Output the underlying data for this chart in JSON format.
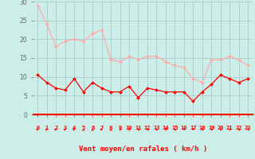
{
  "hours": [
    0,
    1,
    2,
    3,
    4,
    5,
    6,
    7,
    8,
    9,
    10,
    11,
    12,
    13,
    14,
    15,
    16,
    17,
    18,
    19,
    20,
    21,
    22,
    23
  ],
  "wind_avg": [
    10.5,
    8.5,
    7,
    6.5,
    9.5,
    6,
    8.5,
    7,
    6,
    6,
    7.5,
    4.5,
    7,
    6.5,
    6,
    6,
    6,
    3.5,
    6,
    8,
    10.5,
    9.5,
    8.5,
    9.5
  ],
  "wind_gust": [
    29,
    24,
    18,
    19.5,
    20,
    19.5,
    21.5,
    22.5,
    14.5,
    14,
    15.5,
    14.5,
    15.5,
    15.5,
    14,
    13,
    12.5,
    9.5,
    8.5,
    14.5,
    14.5,
    15.5,
    14.5,
    13
  ],
  "avg_color": "#ff0000",
  "gust_color": "#ffaaaa",
  "bg_color": "#cceee8",
  "grid_color": "#aacccc",
  "axis_color": "#ff0000",
  "xlabel": "Vent moyen/en rafales ( km/h )",
  "ylim": [
    0,
    30
  ],
  "yticks": [
    0,
    5,
    10,
    15,
    20,
    25,
    30
  ],
  "arrow_angles_deg": [
    45,
    45,
    45,
    45,
    45,
    0,
    0,
    45,
    0,
    315,
    315,
    315,
    315,
    315,
    315,
    315,
    270,
    270,
    315,
    315,
    315,
    315,
    315,
    315
  ]
}
